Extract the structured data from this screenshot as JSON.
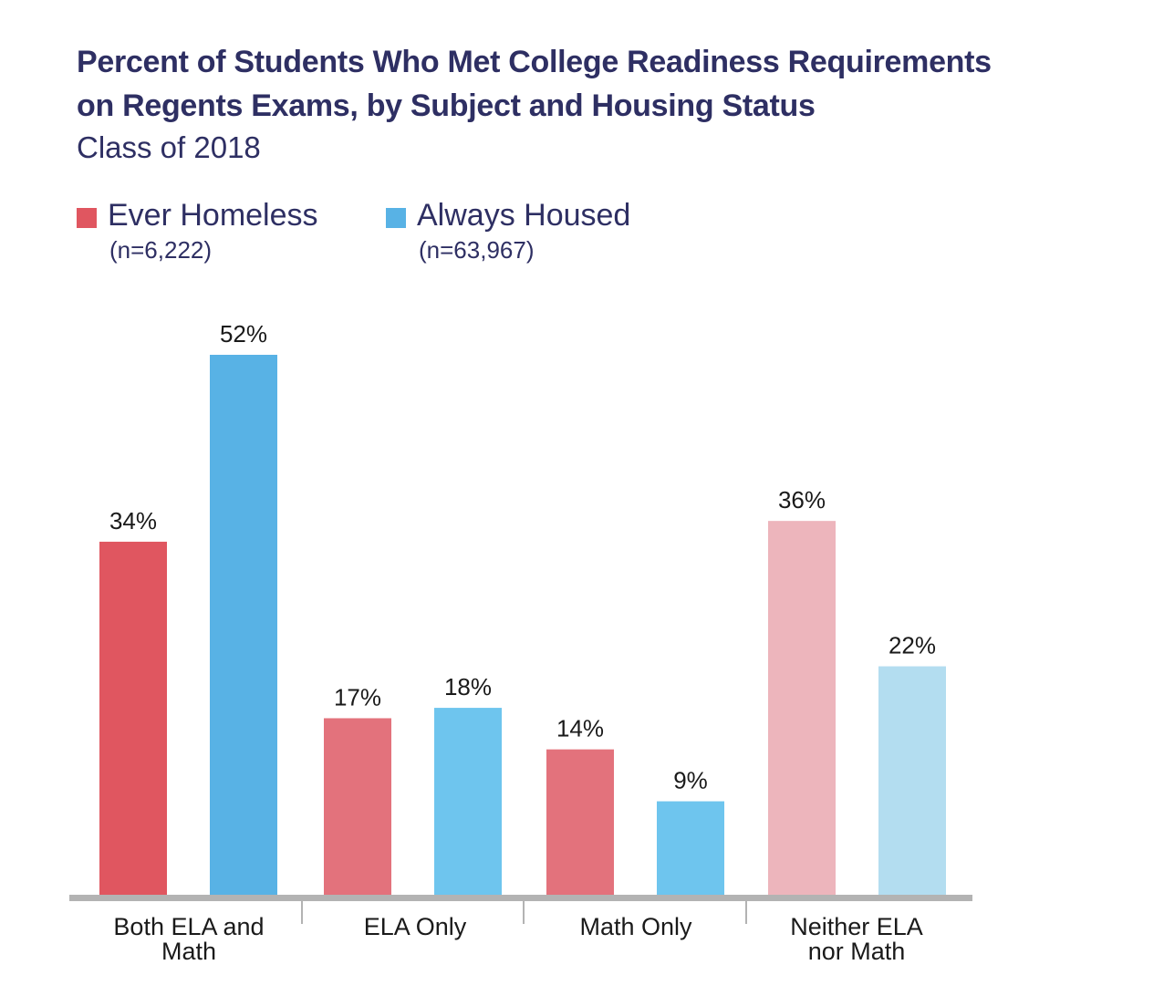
{
  "title_line1": "Percent of Students Who Met College Readiness Requirements",
  "title_line2": "on Regents Exams, by Subject and Housing Status",
  "subtitle": "Class of 2018",
  "legend": [
    {
      "label": "Ever Homeless",
      "n": "(n=6,222)",
      "color": "#e05660"
    },
    {
      "label": "Always Housed",
      "n": "(n=63,967)",
      "color": "#58b2e5"
    }
  ],
  "chart_data": {
    "type": "bar",
    "title": "Percent of Students Who Met College Readiness Requirements on Regents Exams, by Subject and Housing Status",
    "subtitle": "Class of 2018",
    "categories": [
      {
        "line1": "Both ELA and",
        "line2": "Math"
      },
      {
        "line1": "ELA Only",
        "line2": ""
      },
      {
        "line1": "Math Only",
        "line2": ""
      },
      {
        "line1": "Neither ELA",
        "line2": "nor Math"
      }
    ],
    "series": [
      {
        "name": "Ever Homeless",
        "values": [
          34,
          17,
          14,
          36
        ],
        "colors": [
          "#e05660",
          "#e3727c",
          "#e3727c",
          "#edb5bc"
        ]
      },
      {
        "name": "Always Housed",
        "values": [
          52,
          18,
          9,
          22
        ],
        "colors": [
          "#58b2e5",
          "#6ec5ee",
          "#6ec5ee",
          "#b3ddf0"
        ]
      }
    ],
    "value_labels": [
      [
        "34%",
        "17%",
        "14%",
        "36%"
      ],
      [
        "52%",
        "18%",
        "9%",
        "22%"
      ]
    ],
    "ylim": [
      0,
      52
    ],
    "grid": false,
    "legend_position": "top-left"
  }
}
